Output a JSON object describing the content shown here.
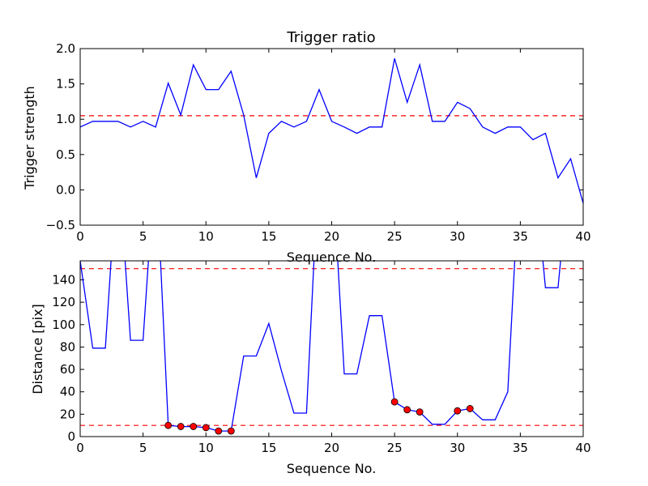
{
  "chart_data": [
    {
      "type": "line",
      "title": "Trigger ratio",
      "xlabel": "Sequence No.",
      "ylabel": "Trigger strength",
      "xlim": [
        0,
        40
      ],
      "ylim": [
        -0.5,
        2.0
      ],
      "xticks": [
        "0",
        "5",
        "10",
        "15",
        "20",
        "25",
        "30",
        "35",
        "40"
      ],
      "yticks": [
        "−0.5",
        "0.0",
        "0.5",
        "1.0",
        "1.5",
        "2.0"
      ],
      "grid": false,
      "series": [
        {
          "color": "#0000ff",
          "x": [
            0,
            1,
            2,
            3,
            4,
            5,
            6,
            7,
            8,
            9,
            10,
            11,
            12,
            13,
            14,
            15,
            16,
            17,
            18,
            19,
            20,
            21,
            22,
            23,
            24,
            25,
            26,
            27,
            28,
            29,
            30,
            31,
            32,
            33,
            34,
            35,
            36,
            37,
            38,
            39,
            40
          ],
          "y": [
            0.89,
            0.97,
            0.97,
            0.97,
            0.89,
            0.97,
            0.89,
            1.51,
            1.06,
            1.77,
            1.42,
            1.42,
            1.68,
            1.06,
            0.17,
            0.8,
            0.97,
            0.89,
            0.97,
            1.42,
            0.97,
            0.89,
            0.8,
            0.89,
            0.89,
            1.86,
            1.24,
            1.77,
            0.97,
            0.97,
            1.24,
            1.15,
            0.89,
            0.8,
            0.89,
            0.89,
            0.71,
            0.8,
            0.17,
            0.44,
            -0.19
          ]
        }
      ],
      "hlines": [
        {
          "y": 1.05,
          "color": "#ff0000",
          "style": "dashed"
        }
      ]
    },
    {
      "type": "line",
      "title": "",
      "xlabel": "Sequence No.",
      "ylabel": "Distance [pix]",
      "xlim": [
        0,
        40
      ],
      "ylim": [
        0,
        157
      ],
      "xticks": [
        "0",
        "5",
        "10",
        "15",
        "20",
        "25",
        "30",
        "35",
        "40"
      ],
      "yticks": [
        "0",
        "20",
        "40",
        "60",
        "80",
        "100",
        "120",
        "140"
      ],
      "grid": false,
      "series": [
        {
          "color": "#0000ff",
          "x": [
            0,
            1,
            2,
            3,
            4,
            5,
            6,
            7,
            8,
            9,
            10,
            11,
            12,
            13,
            14,
            15,
            16,
            17,
            18,
            19,
            20,
            21,
            22,
            23,
            24,
            25,
            26,
            27,
            28,
            29,
            30,
            31,
            32,
            33,
            34,
            35,
            36,
            37,
            38,
            39,
            40
          ],
          "y": [
            157,
            79,
            79,
            null,
            86,
            86,
            null,
            10,
            9,
            9,
            8,
            5,
            5,
            72,
            72,
            101,
            59,
            21,
            21,
            null,
            null,
            56,
            56,
            108,
            108,
            31,
            24,
            22,
            11,
            11,
            23,
            25,
            15,
            15,
            40,
            null,
            null,
            133,
            133,
            null,
            null
          ]
        },
        {
          "color": "#ff0000",
          "marker": "circle",
          "x": [
            7,
            8,
            9,
            10,
            11,
            12,
            25,
            26,
            27,
            30,
            31
          ],
          "y": [
            10,
            9,
            9,
            8,
            5,
            5,
            31,
            24,
            22,
            23,
            25
          ]
        }
      ],
      "hlines": [
        {
          "y": 150,
          "color": "#ff0000",
          "style": "dashed"
        },
        {
          "y": 10,
          "color": "#ff0000",
          "style": "dashed"
        }
      ]
    }
  ]
}
